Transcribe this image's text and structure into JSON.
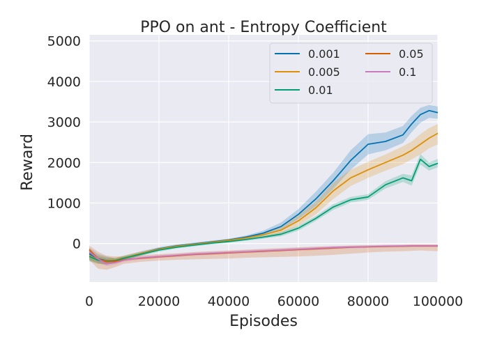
{
  "chart_data": {
    "type": "line",
    "title": "PPO on ant - Entropy Coefficient",
    "xlabel": "Episodes",
    "ylabel": "Reward",
    "xlim": [
      0,
      100000
    ],
    "ylim": [
      -950,
      5150
    ],
    "xticks": [
      0,
      20000,
      40000,
      60000,
      80000,
      100000
    ],
    "xtick_labels": [
      "0",
      "20000",
      "40000",
      "60000",
      "80000",
      "100000"
    ],
    "yticks": [
      0,
      1000,
      2000,
      3000,
      4000,
      5000
    ],
    "ytick_labels": [
      "0",
      "1000",
      "2000",
      "3000",
      "4000",
      "5000"
    ],
    "grid": true,
    "legend_position": "top-right",
    "legend_columns": 2,
    "x": [
      0,
      2500,
      5000,
      7500,
      10000,
      15000,
      20000,
      25000,
      30000,
      35000,
      40000,
      45000,
      50000,
      55000,
      60000,
      65000,
      70000,
      75000,
      80000,
      85000,
      90000,
      92500,
      95000,
      97500,
      100000
    ],
    "series": [
      {
        "name": "0.001",
        "color": "#0173b2",
        "values": [
          -250,
          -380,
          -420,
          -420,
          -360,
          -240,
          -130,
          -60,
          -10,
          40,
          90,
          160,
          260,
          420,
          720,
          1100,
          1550,
          2050,
          2450,
          2520,
          2680,
          2950,
          3180,
          3280,
          3230
        ],
        "lower": [
          -400,
          -480,
          -520,
          -480,
          -420,
          -290,
          -170,
          -100,
          -40,
          10,
          60,
          120,
          200,
          340,
          600,
          920,
          1350,
          1820,
          2200,
          2300,
          2480,
          2750,
          2980,
          3100,
          3080
        ],
        "upper": [
          -100,
          -260,
          -320,
          -360,
          -300,
          -190,
          -90,
          -20,
          20,
          70,
          120,
          200,
          320,
          520,
          850,
          1280,
          1750,
          2300,
          2700,
          2740,
          2900,
          3150,
          3350,
          3420,
          3380
        ]
      },
      {
        "name": "0.005",
        "color": "#de8f05",
        "values": [
          -300,
          -400,
          -430,
          -410,
          -350,
          -240,
          -140,
          -70,
          -20,
          30,
          80,
          140,
          220,
          330,
          560,
          880,
          1300,
          1620,
          1820,
          2000,
          2180,
          2300,
          2450,
          2600,
          2720
        ],
        "lower": [
          -420,
          -500,
          -520,
          -470,
          -410,
          -290,
          -180,
          -110,
          -50,
          0,
          50,
          100,
          170,
          250,
          440,
          720,
          1100,
          1420,
          1620,
          1800,
          1960,
          2080,
          2200,
          2350,
          2450
        ],
        "upper": [
          -180,
          -300,
          -340,
          -350,
          -290,
          -190,
          -100,
          -30,
          10,
          60,
          110,
          180,
          270,
          420,
          700,
          1040,
          1500,
          1820,
          2020,
          2200,
          2400,
          2520,
          2700,
          2850,
          2950
        ]
      },
      {
        "name": "0.01",
        "color": "#029e73",
        "values": [
          -320,
          -410,
          -440,
          -420,
          -360,
          -260,
          -160,
          -90,
          -40,
          10,
          50,
          100,
          160,
          230,
          380,
          620,
          900,
          1080,
          1150,
          1450,
          1620,
          1550,
          2080,
          1900,
          1980
        ],
        "lower": [
          -440,
          -500,
          -520,
          -470,
          -410,
          -300,
          -200,
          -120,
          -70,
          -20,
          20,
          70,
          120,
          180,
          320,
          560,
          830,
          1010,
          1080,
          1360,
          1520,
          1430,
          1950,
          1800,
          1880
        ],
        "upper": [
          -200,
          -320,
          -360,
          -370,
          -310,
          -220,
          -120,
          -60,
          -10,
          40,
          80,
          130,
          200,
          280,
          440,
          680,
          970,
          1150,
          1220,
          1540,
          1720,
          1680,
          2210,
          2000,
          2090
        ]
      },
      {
        "name": "0.05",
        "color": "#d55e00",
        "values": [
          -150,
          -380,
          -450,
          -440,
          -400,
          -360,
          -330,
          -300,
          -270,
          -250,
          -230,
          -210,
          -190,
          -170,
          -150,
          -130,
          -110,
          -90,
          -80,
          -70,
          -65,
          -60,
          -60,
          -60,
          -60
        ],
        "lower": [
          -400,
          -620,
          -650,
          -580,
          -500,
          -450,
          -420,
          -400,
          -390,
          -380,
          -370,
          -350,
          -340,
          -330,
          -320,
          -300,
          -280,
          -250,
          -220,
          -200,
          -190,
          -180,
          -170,
          -180,
          -190
        ],
        "upper": [
          -50,
          -200,
          -300,
          -320,
          -320,
          -290,
          -260,
          -240,
          -210,
          -190,
          -170,
          -150,
          -130,
          -110,
          -90,
          -75,
          -60,
          -50,
          -40,
          -30,
          -25,
          -20,
          -20,
          -20,
          -20
        ]
      },
      {
        "name": "0.1",
        "color": "#cc78bc",
        "values": [
          -200,
          -380,
          -500,
          -470,
          -410,
          -350,
          -320,
          -290,
          -260,
          -240,
          -220,
          -200,
          -180,
          -160,
          -140,
          -120,
          -100,
          -85,
          -75,
          -65,
          -60,
          -55,
          -55,
          -55,
          -55
        ],
        "lower": [
          -280,
          -450,
          -560,
          -520,
          -450,
          -390,
          -360,
          -330,
          -300,
          -280,
          -260,
          -240,
          -220,
          -200,
          -180,
          -160,
          -140,
          -120,
          -110,
          -100,
          -90,
          -85,
          -85,
          -85,
          -85
        ],
        "upper": [
          -120,
          -310,
          -440,
          -420,
          -370,
          -310,
          -280,
          -250,
          -220,
          -200,
          -180,
          -160,
          -140,
          -120,
          -100,
          -80,
          -65,
          -50,
          -45,
          -35,
          -30,
          -25,
          -25,
          -25,
          -25
        ]
      }
    ]
  }
}
